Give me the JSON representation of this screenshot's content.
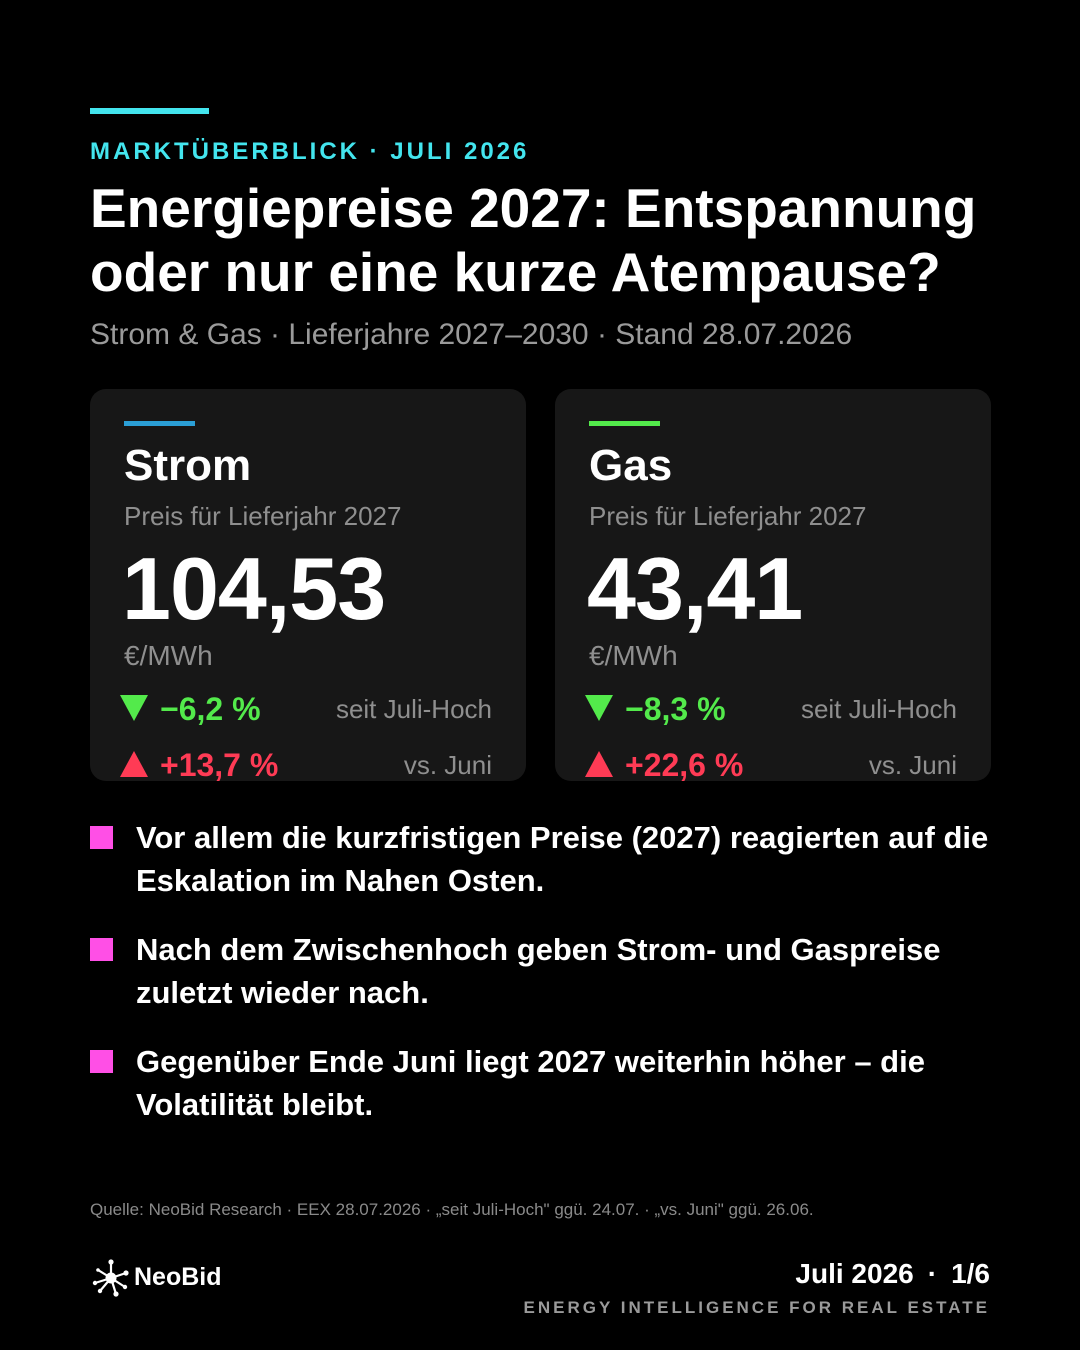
{
  "header": {
    "kicker": "MARKTÜBERBLICK · JULI 2026",
    "title": "Energiepreise 2027: Entspannung oder nur eine kurze Atempause?",
    "subtitle": "Strom & Gas · Lieferjahre 2027–2030 · Stand 28.07.2026",
    "accent_color": "#43e5ee"
  },
  "cards": [
    {
      "name": "Strom",
      "accent_color": "#2b9fd6",
      "label": "Preis für Lieferjahr 2027",
      "value": "104,53",
      "unit": "€/MWh",
      "changes": [
        {
          "direction": "down",
          "value": "−6,2 %",
          "reference": "seit Juli-Hoch"
        },
        {
          "direction": "up",
          "value": "+13,7 %",
          "reference": "vs. Juni"
        }
      ]
    },
    {
      "name": "Gas",
      "accent_color": "#53ea4b",
      "label": "Preis für Lieferjahr 2027",
      "value": "43,41",
      "unit": "€/MWh",
      "changes": [
        {
          "direction": "down",
          "value": "−8,3 %",
          "reference": "seit Juli-Hoch"
        },
        {
          "direction": "up",
          "value": "+22,6 %",
          "reference": "vs. Juni"
        }
      ]
    }
  ],
  "bullets": [
    "Vor allem die kurzfristigen Preise (2027) reagierten auf die Eskalation im Nahen Osten.",
    "Nach dem Zwischenhoch geben Strom- und Gaspreise zuletzt wieder nach.",
    "Gegenüber Ende Juni liegt 2027 weiterhin höher – die Volatilität bleibt."
  ],
  "bullet_color": "#ff4fe6",
  "source": "Quelle: NeoBid Research · EEX 28.07.2026 · „seit Juli-Hoch\" ggü. 24.07. · „vs. Juni\" ggü. 26.06.",
  "footer": {
    "brand": "NeoBid",
    "logo_icon": "network-node-icon",
    "period": "Juli 2026",
    "separator": "·",
    "page": "1/6",
    "tagline": "ENERGY INTELLIGENCE FOR REAL ESTATE"
  }
}
